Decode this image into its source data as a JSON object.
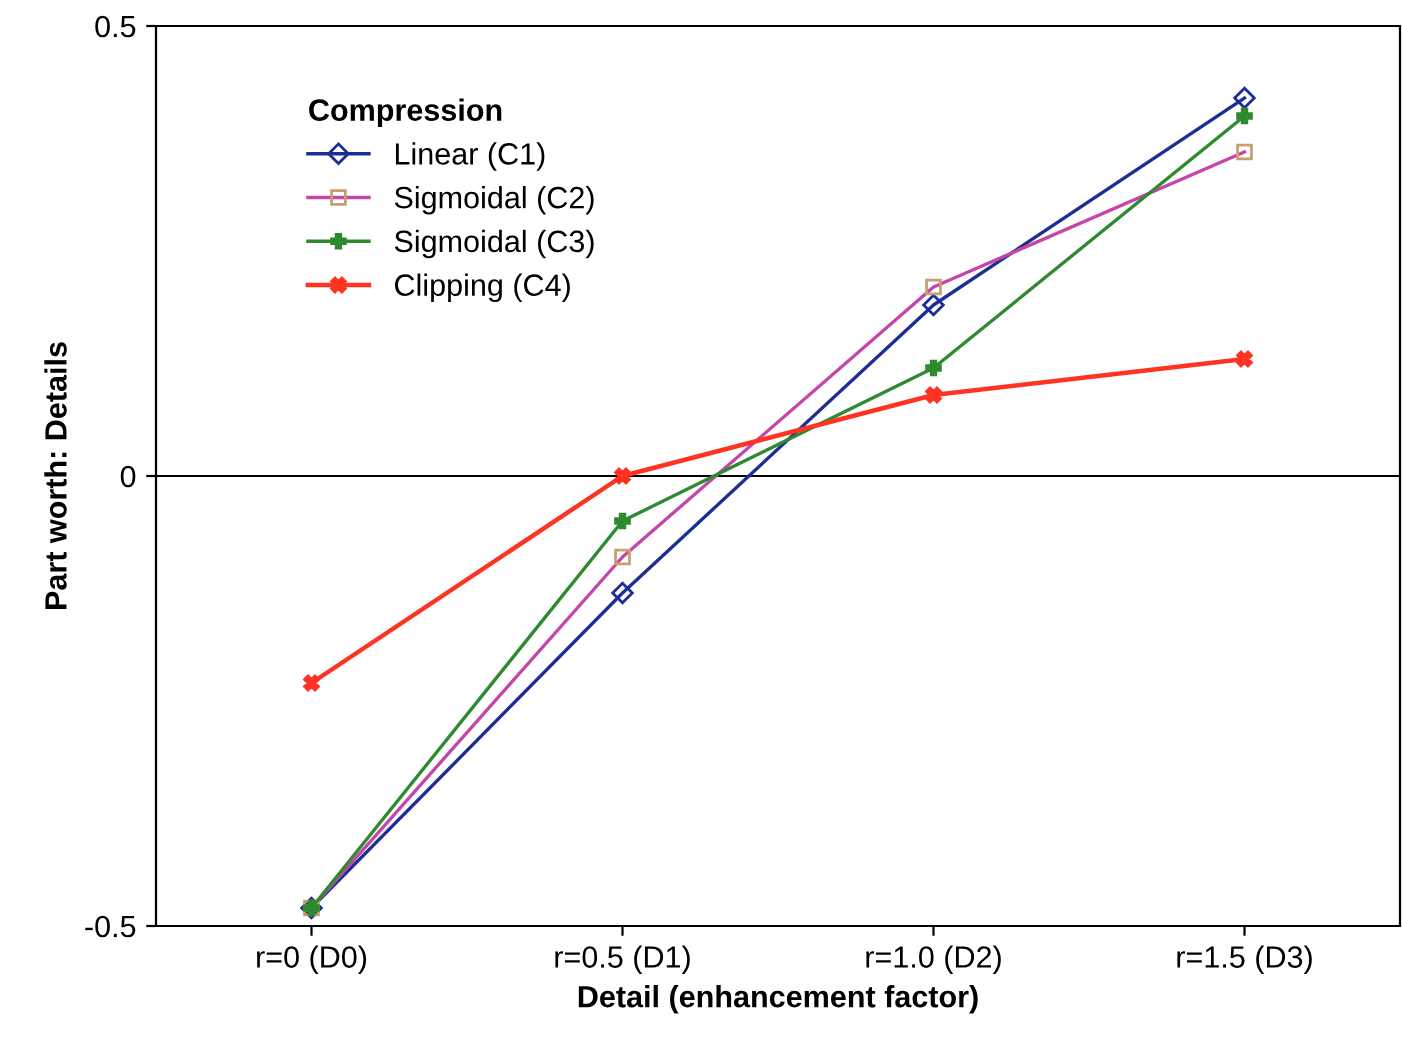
{
  "chart_data": {
    "type": "line",
    "xlabel": "Detail (enhancement factor)",
    "ylabel": "Part worth: Details",
    "legend_title": "Compression",
    "categories": [
      "r=0 (D0)",
      "r=0.5 (D1)",
      "r=1.0 (D2)",
      "r=1.5 (D3)"
    ],
    "series": [
      {
        "name": "Linear (C1)",
        "color": "#1c2e94",
        "marker": "diamond",
        "values": [
          -0.48,
          -0.13,
          0.19,
          0.42
        ]
      },
      {
        "name": "Sigmoidal (C2)",
        "color": "#c545a8",
        "marker": "square",
        "values": [
          -0.48,
          -0.09,
          0.21,
          0.36
        ]
      },
      {
        "name": "Sigmoidal (C3)",
        "color": "#2f8a2f",
        "marker": "plus",
        "values": [
          -0.48,
          -0.05,
          0.12,
          0.4
        ]
      },
      {
        "name": "Clipping (C4)",
        "color": "#ff3322",
        "marker": "cross",
        "values": [
          -0.23,
          0.0,
          0.09,
          0.13
        ]
      }
    ],
    "ylim": [
      -0.5,
      0.5
    ],
    "yticks": [
      -0.5,
      0,
      0.5
    ],
    "ref_lines": [
      {
        "axis": "y",
        "value": 0,
        "color": "#000000"
      }
    ],
    "grid": false,
    "legend": "top left"
  }
}
